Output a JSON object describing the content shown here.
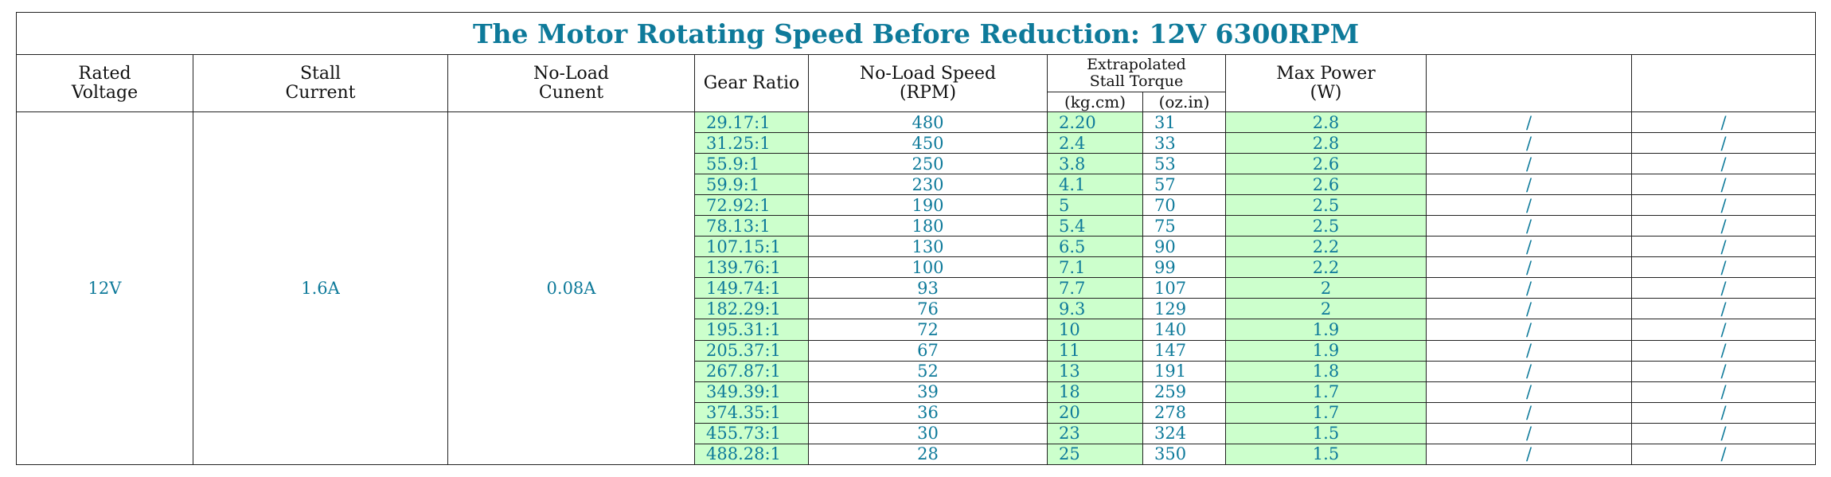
{
  "title": "The Motor Rotating Speed Before Reduction: 12V 6300RPM",
  "headers": {
    "rated_voltage": [
      "Rated",
      "Voltage"
    ],
    "stall_current": [
      "Stall",
      "Current"
    ],
    "no_load_current": [
      "No-Load",
      "Cunent"
    ],
    "gear_ratio": "Gear Ratio",
    "no_load_speed": [
      "No-Load Speed",
      "(RPM)"
    ],
    "stall_torque": [
      "Extrapolated",
      "Stall Torque"
    ],
    "torque_units": [
      "(kg.cm)",
      "(oz.in)"
    ],
    "max_power": [
      "Max Power",
      "(W)"
    ]
  },
  "specs": {
    "rated_voltage": "12V",
    "stall_current": "1.6A",
    "no_load_current": "0.08A"
  },
  "colors": {
    "title": "#0e7a9a",
    "data_text": "#0e7a9a",
    "big_value": "#ff0000",
    "highlight": "#ccffcc"
  },
  "rows": [
    {
      "gear_ratio": "29.17:1",
      "speed": "480",
      "torque_kgcm": "2.20",
      "torque_ozin": "31",
      "power": "2.8",
      "extra1": "/",
      "extra2": "/"
    },
    {
      "gear_ratio": "31.25:1",
      "speed": "450",
      "torque_kgcm": "2.4",
      "torque_ozin": "33",
      "power": "2.8",
      "extra1": "/",
      "extra2": "/"
    },
    {
      "gear_ratio": "55.9:1",
      "speed": "250",
      "torque_kgcm": "3.8",
      "torque_ozin": "53",
      "power": "2.6",
      "extra1": "/",
      "extra2": "/"
    },
    {
      "gear_ratio": "59.9:1",
      "speed": "230",
      "torque_kgcm": "4.1",
      "torque_ozin": "57",
      "power": "2.6",
      "extra1": "/",
      "extra2": "/"
    },
    {
      "gear_ratio": "72.92:1",
      "speed": "190",
      "torque_kgcm": "5",
      "torque_ozin": "70",
      "power": "2.5",
      "extra1": "/",
      "extra2": "/"
    },
    {
      "gear_ratio": "78.13:1",
      "speed": "180",
      "torque_kgcm": "5.4",
      "torque_ozin": "75",
      "power": "2.5",
      "extra1": "/",
      "extra2": "/"
    },
    {
      "gear_ratio": "107.15:1",
      "speed": "130",
      "torque_kgcm": "6.5",
      "torque_ozin": "90",
      "power": "2.2",
      "extra1": "/",
      "extra2": "/"
    },
    {
      "gear_ratio": "139.76:1",
      "speed": "100",
      "torque_kgcm": "7.1",
      "torque_ozin": "99",
      "power": "2.2",
      "extra1": "/",
      "extra2": "/"
    },
    {
      "gear_ratio": "149.74:1",
      "speed": "93",
      "torque_kgcm": "7.7",
      "torque_ozin": "107",
      "power": "2",
      "extra1": "/",
      "extra2": "/"
    },
    {
      "gear_ratio": "182.29:1",
      "speed": "76",
      "torque_kgcm": "9.3",
      "torque_ozin": "129",
      "power": "2",
      "extra1": "/",
      "extra2": "/"
    },
    {
      "gear_ratio": "195.31:1",
      "speed": "72",
      "torque_kgcm": "10",
      "torque_ozin": "140",
      "power": "1.9",
      "extra1": "/",
      "extra2": "/"
    },
    {
      "gear_ratio": "205.37:1",
      "speed": "67",
      "torque_kgcm": "11",
      "torque_ozin": "147",
      "power": "1.9",
      "extra1": "/",
      "extra2": "/"
    },
    {
      "gear_ratio": "267.87:1",
      "speed": "52",
      "torque_kgcm": "13",
      "torque_ozin": "191",
      "power": "1.8",
      "extra1": "/",
      "extra2": "/"
    },
    {
      "gear_ratio": "349.39:1",
      "speed": "39",
      "torque_kgcm": "18",
      "torque_ozin": "259",
      "power": "1.7",
      "extra1": "/",
      "extra2": "/"
    },
    {
      "gear_ratio": "374.35:1",
      "speed": "36",
      "torque_kgcm": "20",
      "torque_ozin": "278",
      "power": "1.7",
      "extra1": "/",
      "extra2": "/"
    },
    {
      "gear_ratio": "455.73:1",
      "speed": "30",
      "torque_kgcm": "23",
      "torque_ozin": "324",
      "power": "1.5",
      "extra1": "/",
      "extra2": "/"
    },
    {
      "gear_ratio": "488.28:1",
      "speed": "28",
      "torque_kgcm": "25",
      "torque_ozin": "350",
      "power": "1.5",
      "extra1": "/",
      "extra2": "/"
    }
  ]
}
